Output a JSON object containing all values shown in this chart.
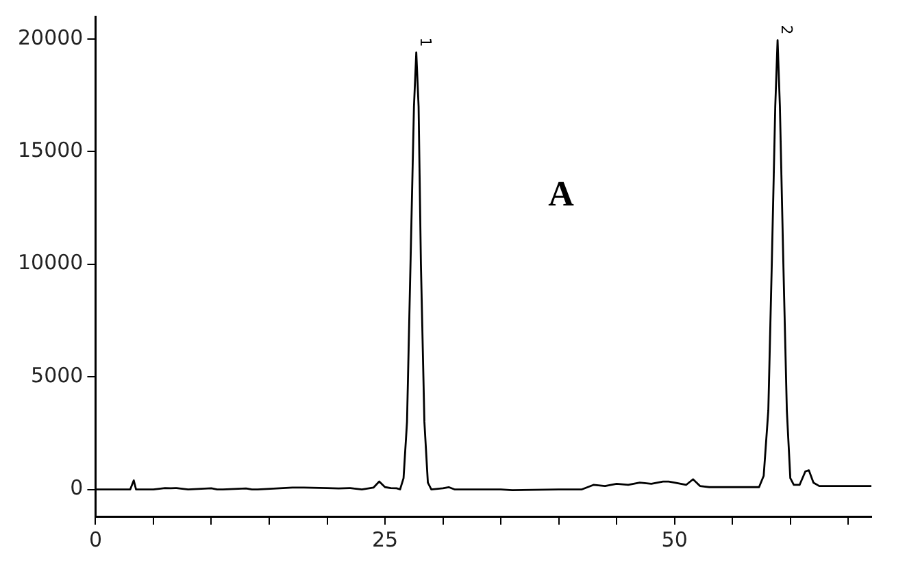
{
  "chart_data": {
    "type": "line",
    "x": [
      0,
      1,
      2,
      3,
      3.3,
      3.5,
      5,
      6,
      6.5,
      7,
      8,
      10,
      10.5,
      11,
      13,
      13.5,
      14,
      17,
      18,
      20,
      21,
      22,
      23,
      24,
      24.5,
      25,
      25.5,
      26,
      26.3,
      26.6,
      26.9,
      27.2,
      27.5,
      27.7,
      27.9,
      28.1,
      28.4,
      28.7,
      29,
      30,
      30.5,
      31,
      35,
      36,
      40,
      42,
      43,
      44,
      45,
      46,
      47,
      48,
      49,
      49.5,
      50,
      51,
      51.6,
      52.2,
      53,
      56,
      57,
      57.3,
      57.7,
      58.1,
      58.4,
      58.7,
      58.9,
      59.1,
      59.4,
      59.7,
      60,
      60.3,
      60.8,
      61.3,
      61.6,
      62,
      62.5,
      67
    ],
    "series": [
      {
        "color": "#000000",
        "values": [
          0,
          0,
          0,
          0,
          400,
          0,
          0,
          60,
          50,
          60,
          0,
          50,
          0,
          0,
          40,
          0,
          0,
          80,
          80,
          60,
          40,
          60,
          0,
          80,
          350,
          100,
          60,
          50,
          0,
          500,
          3000,
          10000,
          17000,
          19400,
          17000,
          10000,
          3000,
          300,
          0,
          50,
          100,
          0,
          0,
          -30,
          0,
          0,
          200,
          150,
          250,
          200,
          300,
          250,
          350,
          350,
          300,
          200,
          450,
          150,
          100,
          100,
          100,
          100,
          600,
          3500,
          10000,
          17000,
          19950,
          17000,
          10000,
          3500,
          500,
          200,
          200,
          800,
          850,
          300,
          150,
          150
        ]
      }
    ],
    "xlim": [
      0,
      67
    ],
    "ylim": [
      -1200,
      21000
    ],
    "xticks": [
      0,
      {
        "value": 5,
        "label": null
      },
      {
        "value": 10,
        "label": null
      },
      {
        "value": 15,
        "label": null
      },
      {
        "value": 20,
        "label": null
      },
      25,
      {
        "value": 30,
        "label": null
      },
      {
        "value": 35,
        "label": null
      },
      {
        "value": 40,
        "label": null
      },
      {
        "value": 45,
        "label": null
      },
      50,
      {
        "value": 55,
        "label": null
      },
      {
        "value": 60,
        "label": null
      },
      {
        "value": 65,
        "label": null
      }
    ],
    "yticks": [
      0,
      5000,
      10000,
      15000,
      20000
    ],
    "marker": "none",
    "line_style": "solid",
    "legend": false,
    "grid": false,
    "annotations": [
      "A",
      {
        "text": "1",
        "x": 27.7,
        "y": 19400
      },
      {
        "text": "2",
        "x": 58.9,
        "y": 19950
      }
    ]
  }
}
